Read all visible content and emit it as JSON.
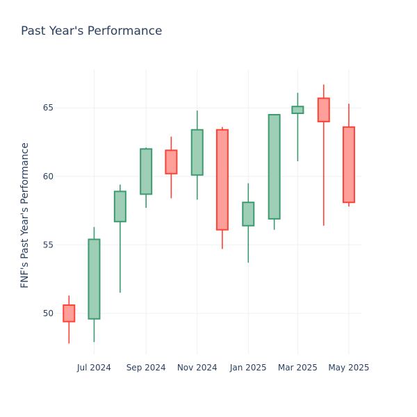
{
  "chart_data": {
    "type": "candlestick",
    "title": "Past Year's Performance",
    "xlabel": "",
    "ylabel": "FNF's Past Year's Performance",
    "ylim": [
      47,
      67.8
    ],
    "yticks": [
      50,
      55,
      60,
      65
    ],
    "xticks": [
      {
        "label": "Jul 2024",
        "date": "2024-07-01"
      },
      {
        "label": "Sep 2024",
        "date": "2024-09-01"
      },
      {
        "label": "Nov 2024",
        "date": "2024-11-01"
      },
      {
        "label": "Jan 2025",
        "date": "2025-01-01"
      },
      {
        "label": "Mar 2025",
        "date": "2025-03-01"
      },
      {
        "label": "May 2025",
        "date": "2025-05-01"
      }
    ],
    "xrange": [
      "2024-05-16",
      "2025-05-16"
    ],
    "grid": true,
    "increasing_color": "#3d9970",
    "increasing_fill": "#9ecfb6",
    "decreasing_color": "#ff4136",
    "decreasing_fill": "#ff9f9a",
    "candles": [
      {
        "date": "2024-06-01",
        "open": 50.6,
        "high": 51.3,
        "low": 47.8,
        "close": 49.4
      },
      {
        "date": "2024-07-01",
        "open": 49.6,
        "high": 56.3,
        "low": 47.9,
        "close": 55.4
      },
      {
        "date": "2024-08-01",
        "open": 56.7,
        "high": 59.4,
        "low": 51.5,
        "close": 58.9
      },
      {
        "date": "2024-09-01",
        "open": 58.7,
        "high": 62.1,
        "low": 57.7,
        "close": 62.0
      },
      {
        "date": "2024-10-01",
        "open": 61.9,
        "high": 62.9,
        "low": 58.4,
        "close": 60.2
      },
      {
        "date": "2024-11-01",
        "open": 60.1,
        "high": 64.8,
        "low": 58.3,
        "close": 63.4
      },
      {
        "date": "2024-12-01",
        "open": 63.4,
        "high": 63.6,
        "low": 54.7,
        "close": 56.1
      },
      {
        "date": "2025-01-01",
        "open": 56.4,
        "high": 59.5,
        "low": 53.7,
        "close": 58.1
      },
      {
        "date": "2025-02-01",
        "open": 56.9,
        "high": 64.5,
        "low": 56.1,
        "close": 64.5
      },
      {
        "date": "2025-03-01",
        "open": 64.6,
        "high": 66.1,
        "low": 61.1,
        "close": 65.1
      },
      {
        "date": "2025-04-01",
        "open": 65.7,
        "high": 66.7,
        "low": 56.4,
        "close": 64.0
      },
      {
        "date": "2025-05-01",
        "open": 63.6,
        "high": 65.3,
        "low": 57.8,
        "close": 58.1
      }
    ]
  }
}
